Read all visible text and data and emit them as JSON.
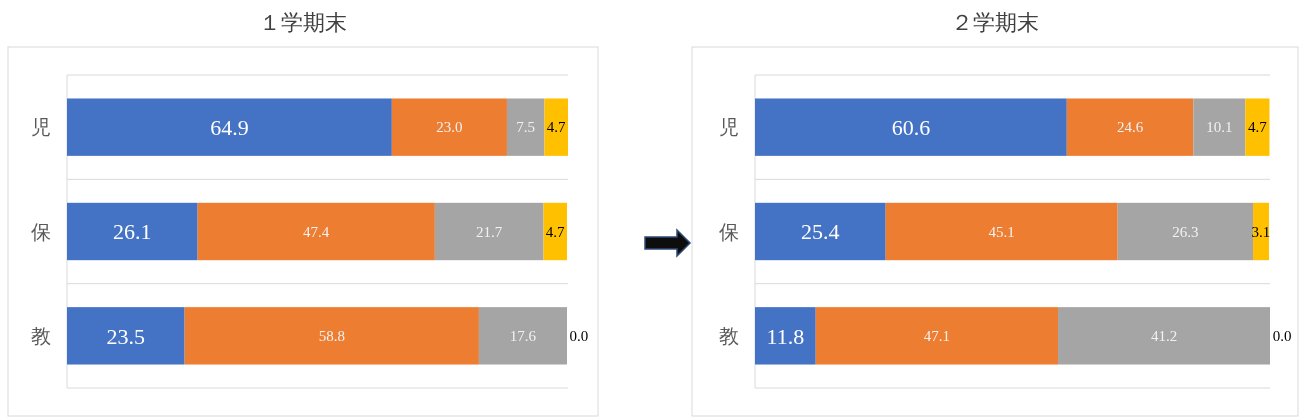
{
  "chart_data": [
    {
      "type": "bar",
      "title": "１学期末",
      "orientation": "horizontal",
      "stacked": true,
      "grid": "y",
      "categories": [
        "児",
        "保",
        "教"
      ],
      "series": [
        {
          "color": "#4472c4",
          "values": [
            64.9,
            26.1,
            23.5
          ],
          "value_labels": [
            "64.9",
            "26.1",
            "23.5"
          ]
        },
        {
          "color": "#ed7d31",
          "values": [
            23.0,
            47.4,
            58.8
          ],
          "value_labels": [
            "23.0",
            "47.4",
            "58.8"
          ]
        },
        {
          "color": "#a5a5a5",
          "values": [
            7.5,
            21.7,
            17.6
          ],
          "value_labels": [
            "7.5",
            "21.7",
            "17.6"
          ]
        },
        {
          "color": "#ffc000",
          "values": [
            4.7,
            4.7,
            0.0
          ],
          "value_labels": [
            "4.7",
            "4.7",
            "0.0"
          ]
        }
      ]
    },
    {
      "type": "bar",
      "title": "２学期末",
      "orientation": "horizontal",
      "stacked": true,
      "grid": "y",
      "categories": [
        "児",
        "保",
        "教"
      ],
      "series": [
        {
          "color": "#4472c4",
          "values": [
            60.6,
            25.4,
            11.8
          ],
          "value_labels": [
            "60.6",
            "25.4",
            "11.8"
          ]
        },
        {
          "color": "#ed7d31",
          "values": [
            24.6,
            45.1,
            47.1
          ],
          "value_labels": [
            "24.6",
            "45.1",
            "47.1"
          ]
        },
        {
          "color": "#a5a5a5",
          "values": [
            10.1,
            26.3,
            41.2
          ],
          "value_labels": [
            "10.1",
            "26.3",
            "41.2"
          ]
        },
        {
          "color": "#ffc000",
          "values": [
            4.7,
            3.1,
            0.0
          ],
          "value_labels": [
            "4.7",
            "3.1",
            "0.0"
          ]
        }
      ]
    }
  ]
}
